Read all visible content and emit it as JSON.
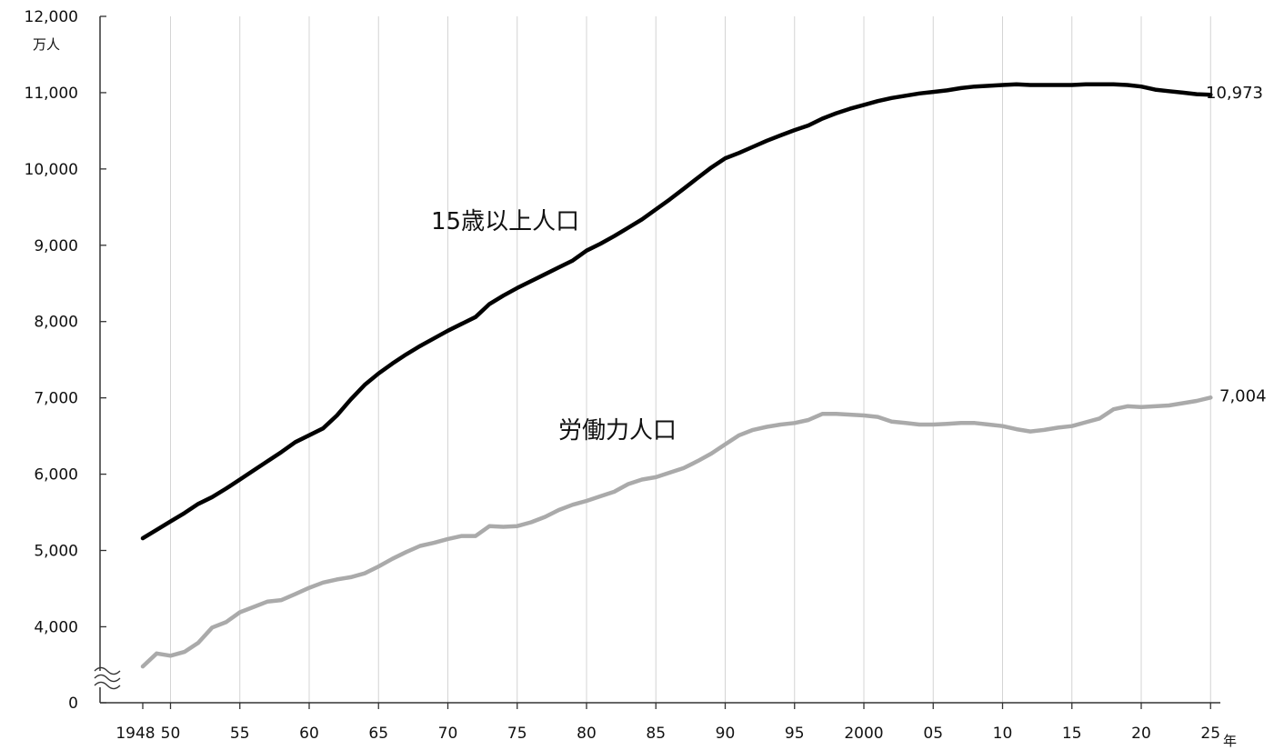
{
  "chart_data": {
    "type": "line",
    "title": "",
    "ylabel_unit": "万人",
    "xlabel_unit": "年",
    "y_axis_break": true,
    "ylim": [
      3000,
      12000
    ],
    "yticks": [
      {
        "value": 0,
        "label": "0"
      },
      {
        "value": 4000,
        "label": "4,000"
      },
      {
        "value": 5000,
        "label": "5,000"
      },
      {
        "value": 6000,
        "label": "6,000"
      },
      {
        "value": 7000,
        "label": "7,000"
      },
      {
        "value": 8000,
        "label": "8,000"
      },
      {
        "value": 9000,
        "label": "9,000"
      },
      {
        "value": 10000,
        "label": "10,000"
      },
      {
        "value": 11000,
        "label": "11,000"
      },
      {
        "value": 12000,
        "label": "12,000"
      }
    ],
    "xlim": [
      1946,
      2026
    ],
    "xticks": [
      {
        "value": 1948,
        "label": "1948"
      },
      {
        "value": 1950,
        "label": "50"
      },
      {
        "value": 1955,
        "label": "55"
      },
      {
        "value": 1960,
        "label": "60"
      },
      {
        "value": 1965,
        "label": "65"
      },
      {
        "value": 1970,
        "label": "70"
      },
      {
        "value": 1975,
        "label": "75"
      },
      {
        "value": 1980,
        "label": "80"
      },
      {
        "value": 1985,
        "label": "85"
      },
      {
        "value": 1990,
        "label": "90"
      },
      {
        "value": 1995,
        "label": "95"
      },
      {
        "value": 2000,
        "label": "2000"
      },
      {
        "value": 2005,
        "label": "05"
      },
      {
        "value": 2010,
        "label": "10"
      },
      {
        "value": 2015,
        "label": "15"
      },
      {
        "value": 2020,
        "label": "20"
      },
      {
        "value": 2025,
        "label": "25"
      }
    ],
    "grid": "vertical",
    "x": [
      1948,
      1949,
      1950,
      1951,
      1952,
      1953,
      1954,
      1955,
      1956,
      1957,
      1958,
      1959,
      1960,
      1961,
      1962,
      1963,
      1964,
      1965,
      1966,
      1967,
      1968,
      1969,
      1970,
      1971,
      1972,
      1973,
      1974,
      1975,
      1976,
      1977,
      1978,
      1979,
      1980,
      1981,
      1982,
      1983,
      1984,
      1985,
      1986,
      1987,
      1988,
      1989,
      1990,
      1991,
      1992,
      1993,
      1994,
      1995,
      1996,
      1997,
      1998,
      1999,
      2000,
      2001,
      2002,
      2003,
      2004,
      2005,
      2006,
      2007,
      2008,
      2009,
      2010,
      2011,
      2012,
      2013,
      2014,
      2015,
      2016,
      2017,
      2018,
      2019,
      2020,
      2021,
      2022,
      2023,
      2024,
      2025
    ],
    "series": [
      {
        "name": "15歳以上人口",
        "color": "#000000",
        "end_label": "10,973",
        "values": [
          5160,
          5270,
          5380,
          5490,
          5610,
          5700,
          5810,
          5930,
          6050,
          6170,
          6290,
          6420,
          6510,
          6600,
          6770,
          6980,
          7170,
          7320,
          7450,
          7570,
          7680,
          7780,
          7880,
          7970,
          8060,
          8230,
          8340,
          8440,
          8530,
          8620,
          8710,
          8800,
          8930,
          9020,
          9120,
          9230,
          9340,
          9470,
          9600,
          9740,
          9880,
          10020,
          10140,
          10210,
          10290,
          10370,
          10440,
          10510,
          10570,
          10660,
          10730,
          10790,
          10840,
          10890,
          10930,
          10960,
          10990,
          11010,
          11030,
          11060,
          11080,
          11090,
          11100,
          11110,
          11100,
          11100,
          11100,
          11100,
          11110,
          11110,
          11110,
          11100,
          11080,
          11040,
          11020,
          11000,
          10980,
          10973
        ]
      },
      {
        "name": "労働力人口",
        "color": "#aaaaaa",
        "end_label": "7,004",
        "values": [
          3480,
          3650,
          3620,
          3670,
          3790,
          3990,
          4060,
          4190,
          4260,
          4330,
          4350,
          4430,
          4510,
          4580,
          4620,
          4650,
          4700,
          4790,
          4890,
          4980,
          5060,
          5100,
          5150,
          5190,
          5190,
          5320,
          5310,
          5320,
          5370,
          5440,
          5530,
          5600,
          5650,
          5710,
          5770,
          5870,
          5930,
          5960,
          6020,
          6080,
          6170,
          6270,
          6390,
          6510,
          6580,
          6620,
          6650,
          6670,
          6710,
          6790,
          6790,
          6780,
          6770,
          6750,
          6690,
          6670,
          6650,
          6650,
          6660,
          6670,
          6670,
          6650,
          6630,
          6590,
          6560,
          6580,
          6610,
          6630,
          6680,
          6730,
          6850,
          6890,
          6880,
          6890,
          6900,
          6930,
          6960,
          7004
        ]
      }
    ]
  }
}
